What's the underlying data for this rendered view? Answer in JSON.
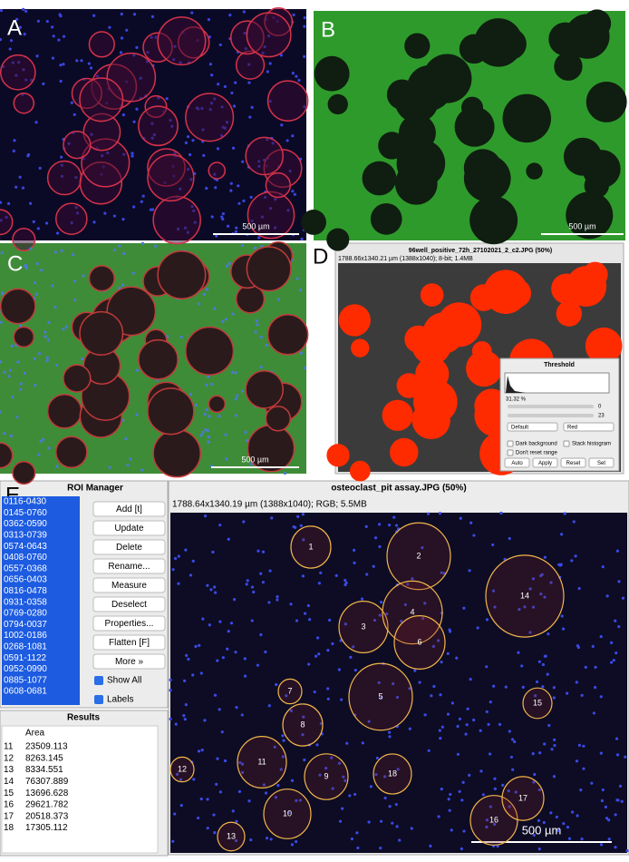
{
  "panels": {
    "labels": [
      "A",
      "B",
      "C",
      "D",
      "E"
    ],
    "scale_bar": "500 µm"
  },
  "d_window": {
    "title": "96well_positive_72h_27102021_2_c2.JPG (50%)",
    "info": "1788.66x1340.21 µm (1388x1040); 8-bit; 1.4MB"
  },
  "threshold_window": {
    "title": "Threshold",
    "percent": "31.32 %",
    "slider_values": [
      "0",
      "23"
    ],
    "dropdowns": [
      "Default",
      "Red"
    ],
    "checkboxes": [
      "Dark background",
      "Stack histogram",
      "Don't reset range"
    ],
    "buttons": [
      "Auto",
      "Apply",
      "Reset",
      "Set"
    ]
  },
  "roi_manager": {
    "title": "ROI Manager",
    "items": [
      "0116-0430",
      "0145-0760",
      "0362-0590",
      "0313-0739",
      "0574-0643",
      "0408-0760",
      "0557-0368",
      "0656-0403",
      "0816-0478",
      "0931-0358",
      "0769-0280",
      "0794-0037",
      "1002-0186",
      "0268-1081",
      "0591-1122",
      "0952-0990",
      "0885-1077",
      "0608-0681"
    ],
    "buttons": [
      "Add [t]",
      "Update",
      "Delete",
      "Rename...",
      "Measure",
      "Deselect",
      "Properties...",
      "Flatten [F]",
      "More »"
    ],
    "checkboxes": [
      "Show All",
      "Labels"
    ]
  },
  "results": {
    "title": "Results",
    "header": "Area",
    "rows": [
      [
        11,
        23509.113
      ],
      [
        12,
        8263.145
      ],
      [
        13,
        8334.551
      ],
      [
        14,
        76307.889
      ],
      [
        15,
        13696.628
      ],
      [
        16,
        29621.782
      ],
      [
        17,
        20518.373
      ],
      [
        18,
        17305.112
      ]
    ]
  },
  "image_window": {
    "title": "osteoclast_pit assay.JPG (50%)",
    "info": "1788.64x1340.19 µm (1388x1040); RGB; 5.5MB",
    "roi_labels": [
      "1",
      "2",
      "3",
      "4",
      "5",
      "6",
      "7",
      "8",
      "9",
      "10",
      "11",
      "12",
      "13",
      "14",
      "15",
      "16",
      "17",
      "18"
    ]
  }
}
